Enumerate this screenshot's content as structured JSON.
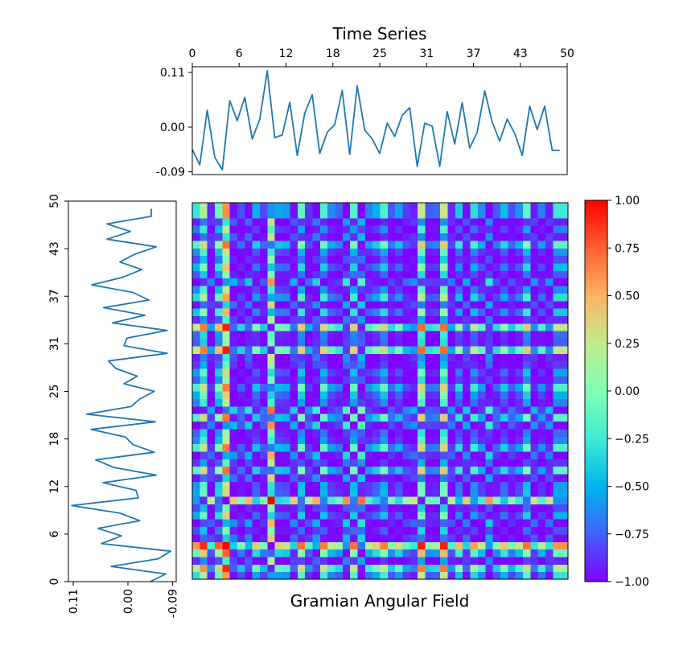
{
  "chart_data": [
    {
      "type": "line",
      "title": "Time Series",
      "xlabel": "",
      "ylabel": "",
      "xlim": [
        0,
        50
      ],
      "ylim": [
        -0.09,
        0.11
      ],
      "x_ticks": [
        "0",
        "6",
        "12",
        "18",
        "25",
        "31",
        "37",
        "43",
        "50"
      ],
      "x_tick_positions": [
        0,
        6.25,
        12.5,
        18.75,
        25,
        31.25,
        37.5,
        43.75,
        50
      ],
      "y_ticks": [
        "0.11",
        "0.00",
        "-0.09"
      ],
      "y_tick_positions": [
        0.11,
        0.0,
        -0.09
      ],
      "x_axis_position": "top",
      "grid": false,
      "line_color": "#1f77b4",
      "x": [
        0,
        1,
        2,
        3,
        4,
        5,
        6,
        7,
        8,
        9,
        10,
        11,
        12,
        13,
        14,
        15,
        16,
        17,
        18,
        19,
        20,
        21,
        22,
        23,
        24,
        25,
        26,
        27,
        28,
        29,
        30,
        31,
        32,
        33,
        34,
        35,
        36,
        37,
        38,
        39,
        40,
        41,
        42,
        43,
        44,
        45,
        46,
        47,
        48,
        49
      ],
      "values": [
        -0.045,
        -0.076,
        0.034,
        -0.061,
        -0.086,
        0.053,
        0.013,
        0.06,
        -0.024,
        0.016,
        0.113,
        -0.021,
        -0.016,
        0.05,
        -0.057,
        0.028,
        0.065,
        -0.053,
        -0.01,
        0.005,
        0.074,
        -0.055,
        0.083,
        -0.006,
        -0.024,
        -0.053,
        0.008,
        -0.019,
        0.024,
        0.039,
        -0.079,
        0.008,
        0.002,
        -0.079,
        0.031,
        -0.034,
        0.049,
        -0.042,
        -0.01,
        0.073,
        0.01,
        -0.028,
        0.016,
        -0.013,
        -0.057,
        0.042,
        -0.005,
        0.042,
        -0.047,
        -0.047
      ]
    },
    {
      "type": "line",
      "title": "",
      "orientation": "vertical",
      "description": "Same time series plotted vertically (index on y-axis, value on inverted x-axis)",
      "xlim": [
        0.11,
        -0.09
      ],
      "ylim": [
        0,
        50
      ],
      "x_ticks": [
        "0.11",
        "0.00",
        "-0.09"
      ],
      "y_ticks": [
        "0",
        "6",
        "12",
        "18",
        "25",
        "31",
        "37",
        "43",
        "50"
      ],
      "grid": false,
      "line_color": "#1f77b4"
    },
    {
      "type": "heatmap",
      "title": "Gramian Angular Field",
      "xlabel": "",
      "ylabel": "",
      "size": [
        50,
        50
      ],
      "method": "summation",
      "origin": "lower",
      "colormap": "rainbow",
      "colorbar": {
        "min": -1.0,
        "max": 1.0,
        "ticks": [
          "1.00",
          "0.75",
          "0.50",
          "0.25",
          "0.00",
          "−0.25",
          "−0.50",
          "−0.75",
          "−1.00"
        ],
        "tick_values": [
          1.0,
          0.75,
          0.5,
          0.25,
          0.0,
          -0.25,
          -0.5,
          -0.75,
          -1.0
        ]
      }
    }
  ],
  "labels": {
    "top_title": "Time Series",
    "bottom_title": "Gramian Angular Field"
  },
  "colors": {
    "line": "#1f77b4",
    "axis": "#000000",
    "background": "#ffffff"
  }
}
